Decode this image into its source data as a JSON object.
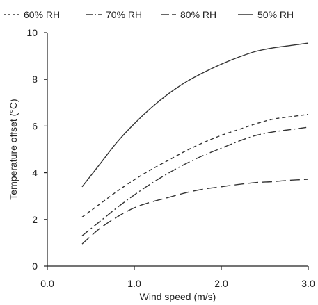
{
  "chart_data": {
    "type": "line",
    "title": "",
    "xlabel": "Wind speed (m/s)",
    "ylabel": "Temperature offset (°C)",
    "xlim": [
      0.0,
      3.0
    ],
    "ylim": [
      0,
      10
    ],
    "x_ticks": [
      0.0,
      1.0,
      2.0,
      3.0
    ],
    "x_tick_labels": [
      "0.0",
      "1.0",
      "2.0",
      "3.0"
    ],
    "y_ticks": [
      0,
      2,
      4,
      6,
      8,
      10
    ],
    "y_tick_labels": [
      "0",
      "2",
      "4",
      "6",
      "8",
      "10"
    ],
    "grid": false,
    "legend_position": "top",
    "x": [
      0.4,
      0.6,
      0.8,
      1.0,
      1.2,
      1.4,
      1.6,
      1.8,
      2.0,
      2.2,
      2.4,
      2.6,
      2.8,
      3.0
    ],
    "series": [
      {
        "name": "60% RH",
        "line_style": "short-dash",
        "color": "#333333",
        "values": [
          2.1,
          2.65,
          3.2,
          3.7,
          4.15,
          4.55,
          4.95,
          5.3,
          5.6,
          5.85,
          6.1,
          6.3,
          6.4,
          6.5
        ]
      },
      {
        "name": "70% RH",
        "line_style": "dash-dot",
        "color": "#333333",
        "values": [
          1.3,
          1.9,
          2.5,
          3.05,
          3.55,
          4.0,
          4.4,
          4.75,
          5.05,
          5.35,
          5.6,
          5.75,
          5.85,
          5.95
        ]
      },
      {
        "name": "80% RH",
        "line_style": "long-dash",
        "color": "#333333",
        "values": [
          0.95,
          1.6,
          2.1,
          2.5,
          2.75,
          2.95,
          3.15,
          3.3,
          3.4,
          3.5,
          3.58,
          3.62,
          3.68,
          3.72
        ]
      },
      {
        "name": "50% RH",
        "line_style": "solid",
        "color": "#333333",
        "values": [
          3.4,
          4.35,
          5.3,
          6.1,
          6.8,
          7.4,
          7.9,
          8.3,
          8.65,
          8.95,
          9.2,
          9.35,
          9.45,
          9.55
        ]
      }
    ]
  }
}
